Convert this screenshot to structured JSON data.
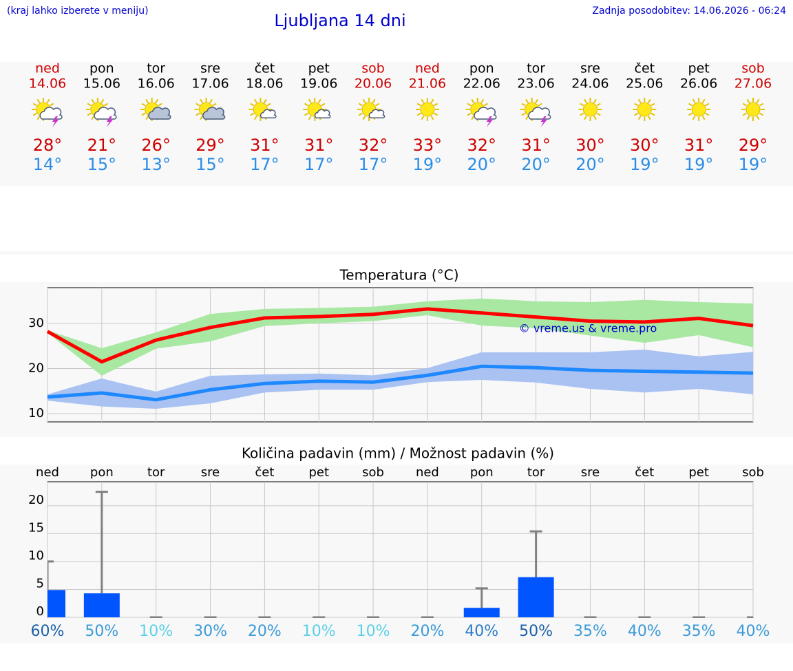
{
  "header": {
    "note": "(kraj lahko izberete v meniju)",
    "title": "Ljubljana 14 dni",
    "updated": "Zadnja posodobitev: 14.06.2026 - 06:24"
  },
  "days": [
    {
      "weekday": "ned",
      "date": "14.06",
      "max": "28°",
      "min": "14°",
      "color": "#cc0000"
    },
    {
      "weekday": "pon",
      "date": "15.06",
      "max": "21°",
      "min": "15°",
      "color": "#000000"
    },
    {
      "weekday": "tor",
      "date": "16.06",
      "max": "26°",
      "min": "13°",
      "color": "#000000"
    },
    {
      "weekday": "sre",
      "date": "17.06",
      "max": "29°",
      "min": "15°",
      "color": "#000000"
    },
    {
      "weekday": "čet",
      "date": "18.06",
      "max": "31°",
      "min": "17°",
      "color": "#000000"
    },
    {
      "weekday": "pet",
      "date": "19.06",
      "max": "31°",
      "min": "17°",
      "color": "#000000"
    },
    {
      "weekday": "sob",
      "date": "20.06",
      "max": "32°",
      "min": "17°",
      "color": "#cc0000"
    },
    {
      "weekday": "ned",
      "date": "21.06",
      "max": "33°",
      "min": "19°",
      "color": "#cc0000"
    },
    {
      "weekday": "pon",
      "date": "22.06",
      "max": "32°",
      "min": "20°",
      "color": "#000000"
    },
    {
      "weekday": "tor",
      "date": "23.06",
      "max": "31°",
      "min": "20°",
      "color": "#000000"
    },
    {
      "weekday": "sre",
      "date": "24.06",
      "max": "30°",
      "min": "20°",
      "color": "#000000"
    },
    {
      "weekday": "čet",
      "date": "25.06",
      "max": "30°",
      "min": "19°",
      "color": "#000000"
    },
    {
      "weekday": "pet",
      "date": "26.06",
      "max": "31°",
      "min": "19°",
      "color": "#000000"
    },
    {
      "weekday": "sob",
      "date": "27.06",
      "max": "29°",
      "min": "19°",
      "color": "#cc0000"
    }
  ],
  "chart_data": [
    {
      "type": "line",
      "title": "Temperatura (°C)",
      "annotation": "© vreme.us & vreme.pro",
      "ylim": [
        8.2,
        37.9
      ],
      "yticks": [
        10,
        20,
        30
      ],
      "grid": true,
      "series": [
        {
          "color": "#ff0000",
          "band_color": "#a9e8a3",
          "values": [
            28.2,
            21.5,
            26.3,
            29.1,
            31.2,
            31.5,
            32,
            33.2,
            32.3,
            31.4,
            30.5,
            30.3,
            31.1,
            29.5
          ],
          "low": [
            27.9,
            18.4,
            24.4,
            26,
            29.4,
            30,
            30.5,
            31.8,
            29.5,
            28.9,
            27.3,
            25.7,
            27.4,
            24.7
          ],
          "high": [
            28.5,
            24.5,
            28,
            32.1,
            33.2,
            33.4,
            33.7,
            34.9,
            35.5,
            34.9,
            34.7,
            35.2,
            34.7,
            34.4
          ]
        },
        {
          "color": "#1e88ff",
          "band_color": "#aac2f2",
          "values": [
            13.7,
            14.6,
            13.1,
            15.3,
            16.7,
            17.2,
            17,
            18.5,
            20.5,
            20.2,
            19.6,
            19.4,
            19.2,
            19
          ],
          "low": [
            12.9,
            11.6,
            11.1,
            12.3,
            14.7,
            15.3,
            15.3,
            17,
            17.5,
            16.9,
            15.5,
            14.7,
            15.5,
            14.3
          ],
          "high": [
            14.3,
            17.8,
            14.9,
            18.4,
            18.7,
            18.9,
            18.5,
            20.1,
            23.6,
            23.6,
            23.6,
            24.2,
            22.7,
            23.7
          ]
        }
      ]
    },
    {
      "type": "bar",
      "title": "Količina padavin (mm) / Možnost padavin (%)",
      "color": "#0055ff",
      "error_color": "#808080",
      "ylim": [
        0,
        24.3
      ],
      "yticks": [
        0,
        5,
        10,
        15,
        20
      ],
      "grid": true,
      "categories": [
        "ned",
        "pon",
        "tor",
        "sre",
        "čet",
        "pet",
        "sob",
        "ned",
        "pon",
        "tor",
        "sre",
        "čet",
        "pet",
        "sob"
      ],
      "values": [
        4.9,
        4.3,
        0,
        0,
        0,
        0,
        0,
        0,
        1.7,
        7.2,
        0,
        0,
        0,
        0
      ],
      "max": [
        10,
        22.5,
        0,
        0,
        0,
        0,
        0,
        0,
        5.2,
        15.4,
        0,
        0,
        0,
        0
      ],
      "chance": [
        60,
        50,
        10,
        30,
        20,
        10,
        10,
        20,
        40,
        50,
        35,
        40,
        35,
        40
      ],
      "chance_labels": [
        "60%",
        "50%",
        "10%",
        "30%",
        "20%",
        "10%",
        "10%",
        "20%",
        "40%",
        "50%",
        "35%",
        "40%",
        "35%",
        "40%"
      ],
      "chance_colors": [
        "#1a5fa8",
        "#3a9ad8",
        "#5cd0e6",
        "#3a9ad8",
        "#3a9ad8",
        "#5cd0e6",
        "#5cd0e6",
        "#3a9ad8",
        "#2a7cc8",
        "#1a5fa8",
        "#3a9ad8",
        "#3a9ad8",
        "#3a9ad8",
        "#3a9ad8"
      ]
    }
  ]
}
